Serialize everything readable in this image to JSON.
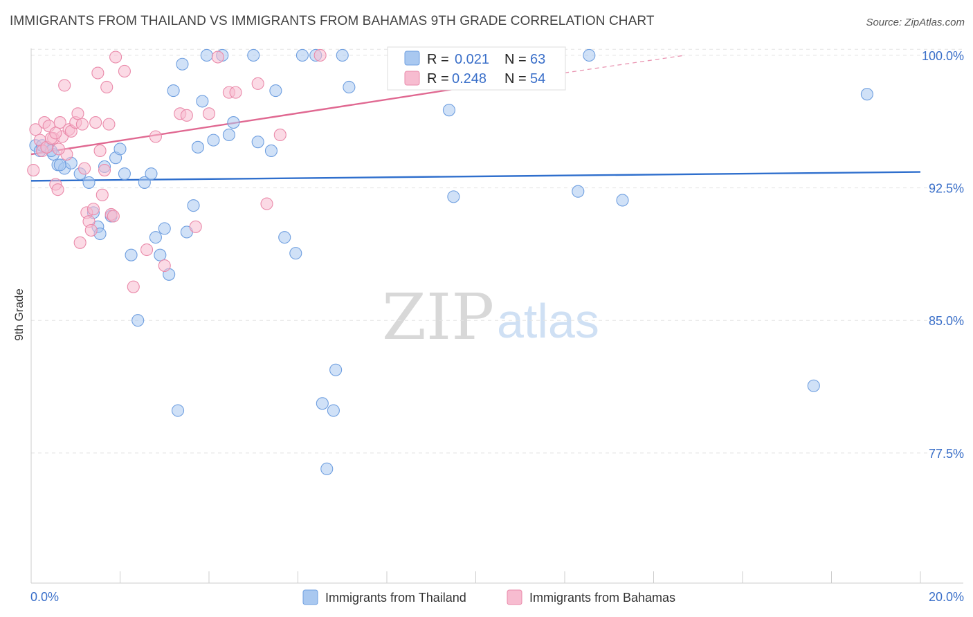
{
  "header": {
    "title": "IMMIGRANTS FROM THAILAND VS IMMIGRANTS FROM BAHAMAS 9TH GRADE CORRELATION CHART",
    "source": "Source: ZipAtlas.com"
  },
  "watermark": {
    "zip": "ZIP",
    "atlas": "atlas"
  },
  "legend": {
    "r_label": "R =",
    "n_label": "N =",
    "rows": [
      {
        "r": "0.021",
        "n": "63",
        "color": "#a9c8f0",
        "stroke": "#6f9fe0"
      },
      {
        "r": "0.248",
        "n": "54",
        "color": "#f7bcd0",
        "stroke": "#ea8aaa"
      }
    ]
  },
  "chart_data": {
    "type": "scatter",
    "title": "IMMIGRANTS FROM THAILAND VS IMMIGRANTS FROM BAHAMAS 9TH GRADE CORRELATION CHART",
    "xlabel": "",
    "ylabel": "9th Grade",
    "xlim": [
      0,
      20
    ],
    "ylim": [
      70.0,
      100.5
    ],
    "x_tick_labels": [
      "0.0%",
      "20.0%"
    ],
    "y_ticks": [
      77.5,
      85.0,
      92.5,
      100.0
    ],
    "y_tick_labels": [
      "77.5%",
      "85.0%",
      "92.5%",
      "100.0%"
    ],
    "grid": true,
    "legend_position": "top-center",
    "series": [
      {
        "name": "Immigrants from Thailand",
        "color": "#a9c8f0",
        "stroke": "#6f9fe0",
        "line_color": "#2f6fcd",
        "trend": {
          "x": [
            0,
            20
          ],
          "y": [
            92.9,
            93.4
          ]
        },
        "points": [
          [
            0.1,
            94.9
          ],
          [
            0.2,
            94.6
          ],
          [
            0.35,
            94.8
          ],
          [
            0.5,
            94.4
          ],
          [
            0.6,
            93.8
          ],
          [
            0.75,
            93.6
          ],
          [
            0.9,
            93.9
          ],
          [
            1.1,
            93.3
          ],
          [
            1.3,
            92.8
          ],
          [
            1.4,
            91.1
          ],
          [
            1.5,
            90.3
          ],
          [
            1.55,
            89.9
          ],
          [
            1.65,
            93.7
          ],
          [
            1.8,
            90.9
          ],
          [
            1.9,
            94.2
          ],
          [
            2.0,
            94.7
          ],
          [
            2.1,
            93.3
          ],
          [
            2.25,
            88.7
          ],
          [
            2.4,
            85.0
          ],
          [
            2.55,
            92.8
          ],
          [
            2.7,
            93.3
          ],
          [
            2.8,
            89.7
          ],
          [
            2.9,
            88.7
          ],
          [
            3.0,
            90.2
          ],
          [
            3.1,
            87.6
          ],
          [
            3.2,
            98.0
          ],
          [
            3.3,
            79.9
          ],
          [
            3.4,
            99.5
          ],
          [
            3.5,
            90.0
          ],
          [
            3.65,
            91.5
          ],
          [
            3.75,
            94.8
          ],
          [
            3.85,
            97.4
          ],
          [
            3.95,
            100.0
          ],
          [
            4.1,
            95.2
          ],
          [
            4.3,
            100.0
          ],
          [
            4.45,
            95.5
          ],
          [
            4.55,
            96.2
          ],
          [
            5.0,
            100.0
          ],
          [
            5.1,
            95.1
          ],
          [
            5.4,
            94.6
          ],
          [
            5.5,
            98.0
          ],
          [
            5.7,
            89.7
          ],
          [
            5.95,
            88.8
          ],
          [
            6.1,
            100.0
          ],
          [
            6.4,
            100.0
          ],
          [
            6.55,
            80.3
          ],
          [
            6.65,
            76.6
          ],
          [
            6.8,
            79.9
          ],
          [
            6.85,
            82.2
          ],
          [
            7.0,
            100.0
          ],
          [
            7.15,
            98.2
          ],
          [
            8.5,
            100.0
          ],
          [
            9.4,
            96.9
          ],
          [
            9.5,
            92.0
          ],
          [
            10.3,
            100.0
          ],
          [
            12.3,
            92.3
          ],
          [
            12.55,
            100.0
          ],
          [
            13.3,
            91.8
          ],
          [
            17.6,
            81.3
          ],
          [
            18.8,
            97.8
          ],
          [
            0.25,
            94.9
          ],
          [
            0.45,
            94.6
          ],
          [
            0.65,
            93.8
          ]
        ]
      },
      {
        "name": "Immigrants from Bahamas",
        "color": "#f7bcd0",
        "stroke": "#ea8aaa",
        "line_color": "#e06891",
        "trend": {
          "x": [
            0,
            9.8
          ],
          "y": [
            94.4,
            98.2
          ]
        },
        "trend_dashed": {
          "x": [
            9.8,
            14.7
          ],
          "y": [
            98.2,
            100.0
          ]
        },
        "points": [
          [
            0.05,
            93.5
          ],
          [
            0.1,
            95.8
          ],
          [
            0.2,
            95.2
          ],
          [
            0.25,
            94.6
          ],
          [
            0.3,
            96.2
          ],
          [
            0.4,
            96.0
          ],
          [
            0.5,
            95.3
          ],
          [
            0.55,
            92.7
          ],
          [
            0.6,
            92.4
          ],
          [
            0.65,
            96.2
          ],
          [
            0.7,
            95.4
          ],
          [
            0.75,
            98.3
          ],
          [
            0.8,
            94.4
          ],
          [
            0.85,
            95.8
          ],
          [
            0.9,
            95.7
          ],
          [
            1.0,
            96.2
          ],
          [
            1.05,
            96.7
          ],
          [
            1.1,
            89.4
          ],
          [
            1.15,
            96.1
          ],
          [
            1.2,
            93.6
          ],
          [
            1.25,
            91.1
          ],
          [
            1.3,
            90.6
          ],
          [
            1.35,
            90.1
          ],
          [
            1.4,
            91.3
          ],
          [
            1.45,
            96.2
          ],
          [
            1.5,
            99.0
          ],
          [
            1.55,
            94.6
          ],
          [
            1.6,
            92.1
          ],
          [
            1.65,
            93.5
          ],
          [
            1.7,
            98.2
          ],
          [
            1.75,
            96.1
          ],
          [
            1.8,
            91.0
          ],
          [
            1.85,
            90.9
          ],
          [
            1.9,
            99.9
          ],
          [
            2.1,
            99.1
          ],
          [
            2.3,
            86.9
          ],
          [
            2.6,
            89.0
          ],
          [
            2.8,
            95.4
          ],
          [
            3.0,
            88.1
          ],
          [
            3.35,
            96.7
          ],
          [
            3.5,
            96.6
          ],
          [
            3.7,
            90.3
          ],
          [
            4.0,
            96.7
          ],
          [
            4.2,
            99.9
          ],
          [
            4.45,
            97.9
          ],
          [
            4.6,
            97.9
          ],
          [
            5.1,
            98.4
          ],
          [
            5.3,
            91.6
          ],
          [
            5.6,
            95.5
          ],
          [
            6.5,
            100.0
          ],
          [
            0.35,
            94.8
          ],
          [
            0.45,
            95.3
          ],
          [
            0.55,
            95.6
          ],
          [
            0.62,
            94.7
          ]
        ]
      }
    ]
  },
  "bottom_legend": [
    {
      "label": "Immigrants from Thailand",
      "color": "#a9c8f0",
      "stroke": "#6f9fe0"
    },
    {
      "label": "Immigrants from Bahamas",
      "color": "#f7bcd0",
      "stroke": "#ea8aaa"
    }
  ]
}
